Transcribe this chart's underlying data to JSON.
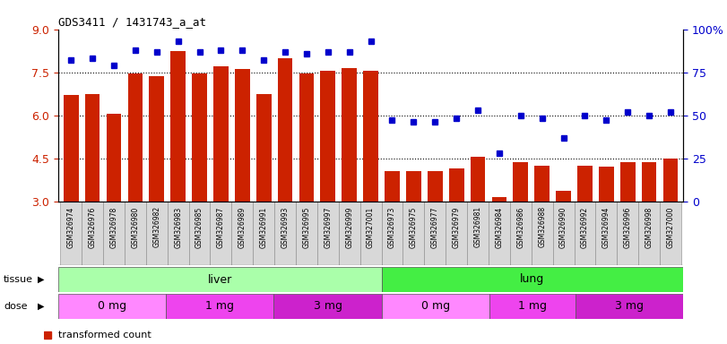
{
  "title": "GDS3411 / 1431743_a_at",
  "samples": [
    "GSM326974",
    "GSM326976",
    "GSM326978",
    "GSM326980",
    "GSM326982",
    "GSM326983",
    "GSM326985",
    "GSM326987",
    "GSM326989",
    "GSM326991",
    "GSM326993",
    "GSM326995",
    "GSM326997",
    "GSM326999",
    "GSM327001",
    "GSM326973",
    "GSM326975",
    "GSM326977",
    "GSM326979",
    "GSM326981",
    "GSM326984",
    "GSM326986",
    "GSM326988",
    "GSM326990",
    "GSM326992",
    "GSM326994",
    "GSM326996",
    "GSM326998",
    "GSM327000"
  ],
  "transformed_count": [
    6.7,
    6.75,
    6.05,
    7.45,
    7.35,
    8.25,
    7.45,
    7.7,
    7.6,
    6.75,
    8.0,
    7.45,
    7.55,
    7.65,
    7.55,
    4.05,
    4.05,
    4.05,
    4.15,
    4.55,
    3.15,
    4.35,
    4.25,
    3.35,
    4.25,
    4.2,
    4.35,
    4.35,
    4.5
  ],
  "percentile_rank": [
    82,
    83,
    79,
    88,
    87,
    93,
    87,
    88,
    88,
    82,
    87,
    86,
    87,
    87,
    93,
    47,
    46,
    46,
    48,
    53,
    28,
    50,
    48,
    37,
    50,
    47,
    52,
    50,
    52
  ],
  "tissue_groups": [
    {
      "label": "liver",
      "start": 0,
      "end": 15,
      "color": "#AAFFAA"
    },
    {
      "label": "lung",
      "start": 15,
      "end": 29,
      "color": "#44EE44"
    }
  ],
  "dose_groups": [
    {
      "label": "0 mg",
      "start": 0,
      "end": 5,
      "color": "#FF88FF"
    },
    {
      "label": "1 mg",
      "start": 5,
      "end": 10,
      "color": "#EE44EE"
    },
    {
      "label": "3 mg",
      "start": 10,
      "end": 15,
      "color": "#CC22CC"
    },
    {
      "label": "0 mg",
      "start": 15,
      "end": 20,
      "color": "#FF88FF"
    },
    {
      "label": "1 mg",
      "start": 20,
      "end": 24,
      "color": "#EE44EE"
    },
    {
      "label": "3 mg",
      "start": 24,
      "end": 29,
      "color": "#CC22CC"
    }
  ],
  "ylim_left": [
    3,
    9
  ],
  "ylim_right": [
    0,
    100
  ],
  "yticks_left": [
    3,
    4.5,
    6,
    7.5,
    9
  ],
  "yticks_right": [
    0,
    25,
    50,
    75,
    100
  ],
  "bar_color": "#CC2200",
  "dot_color": "#0000CC",
  "bar_bottom": 3.0,
  "grid_lines": [
    4.5,
    6.0,
    7.5
  ],
  "background_color": "#FFFFFF",
  "xticklabel_bg": "#D8D8D8",
  "xticklabel_fontsize": 6,
  "bar_width": 0.7
}
